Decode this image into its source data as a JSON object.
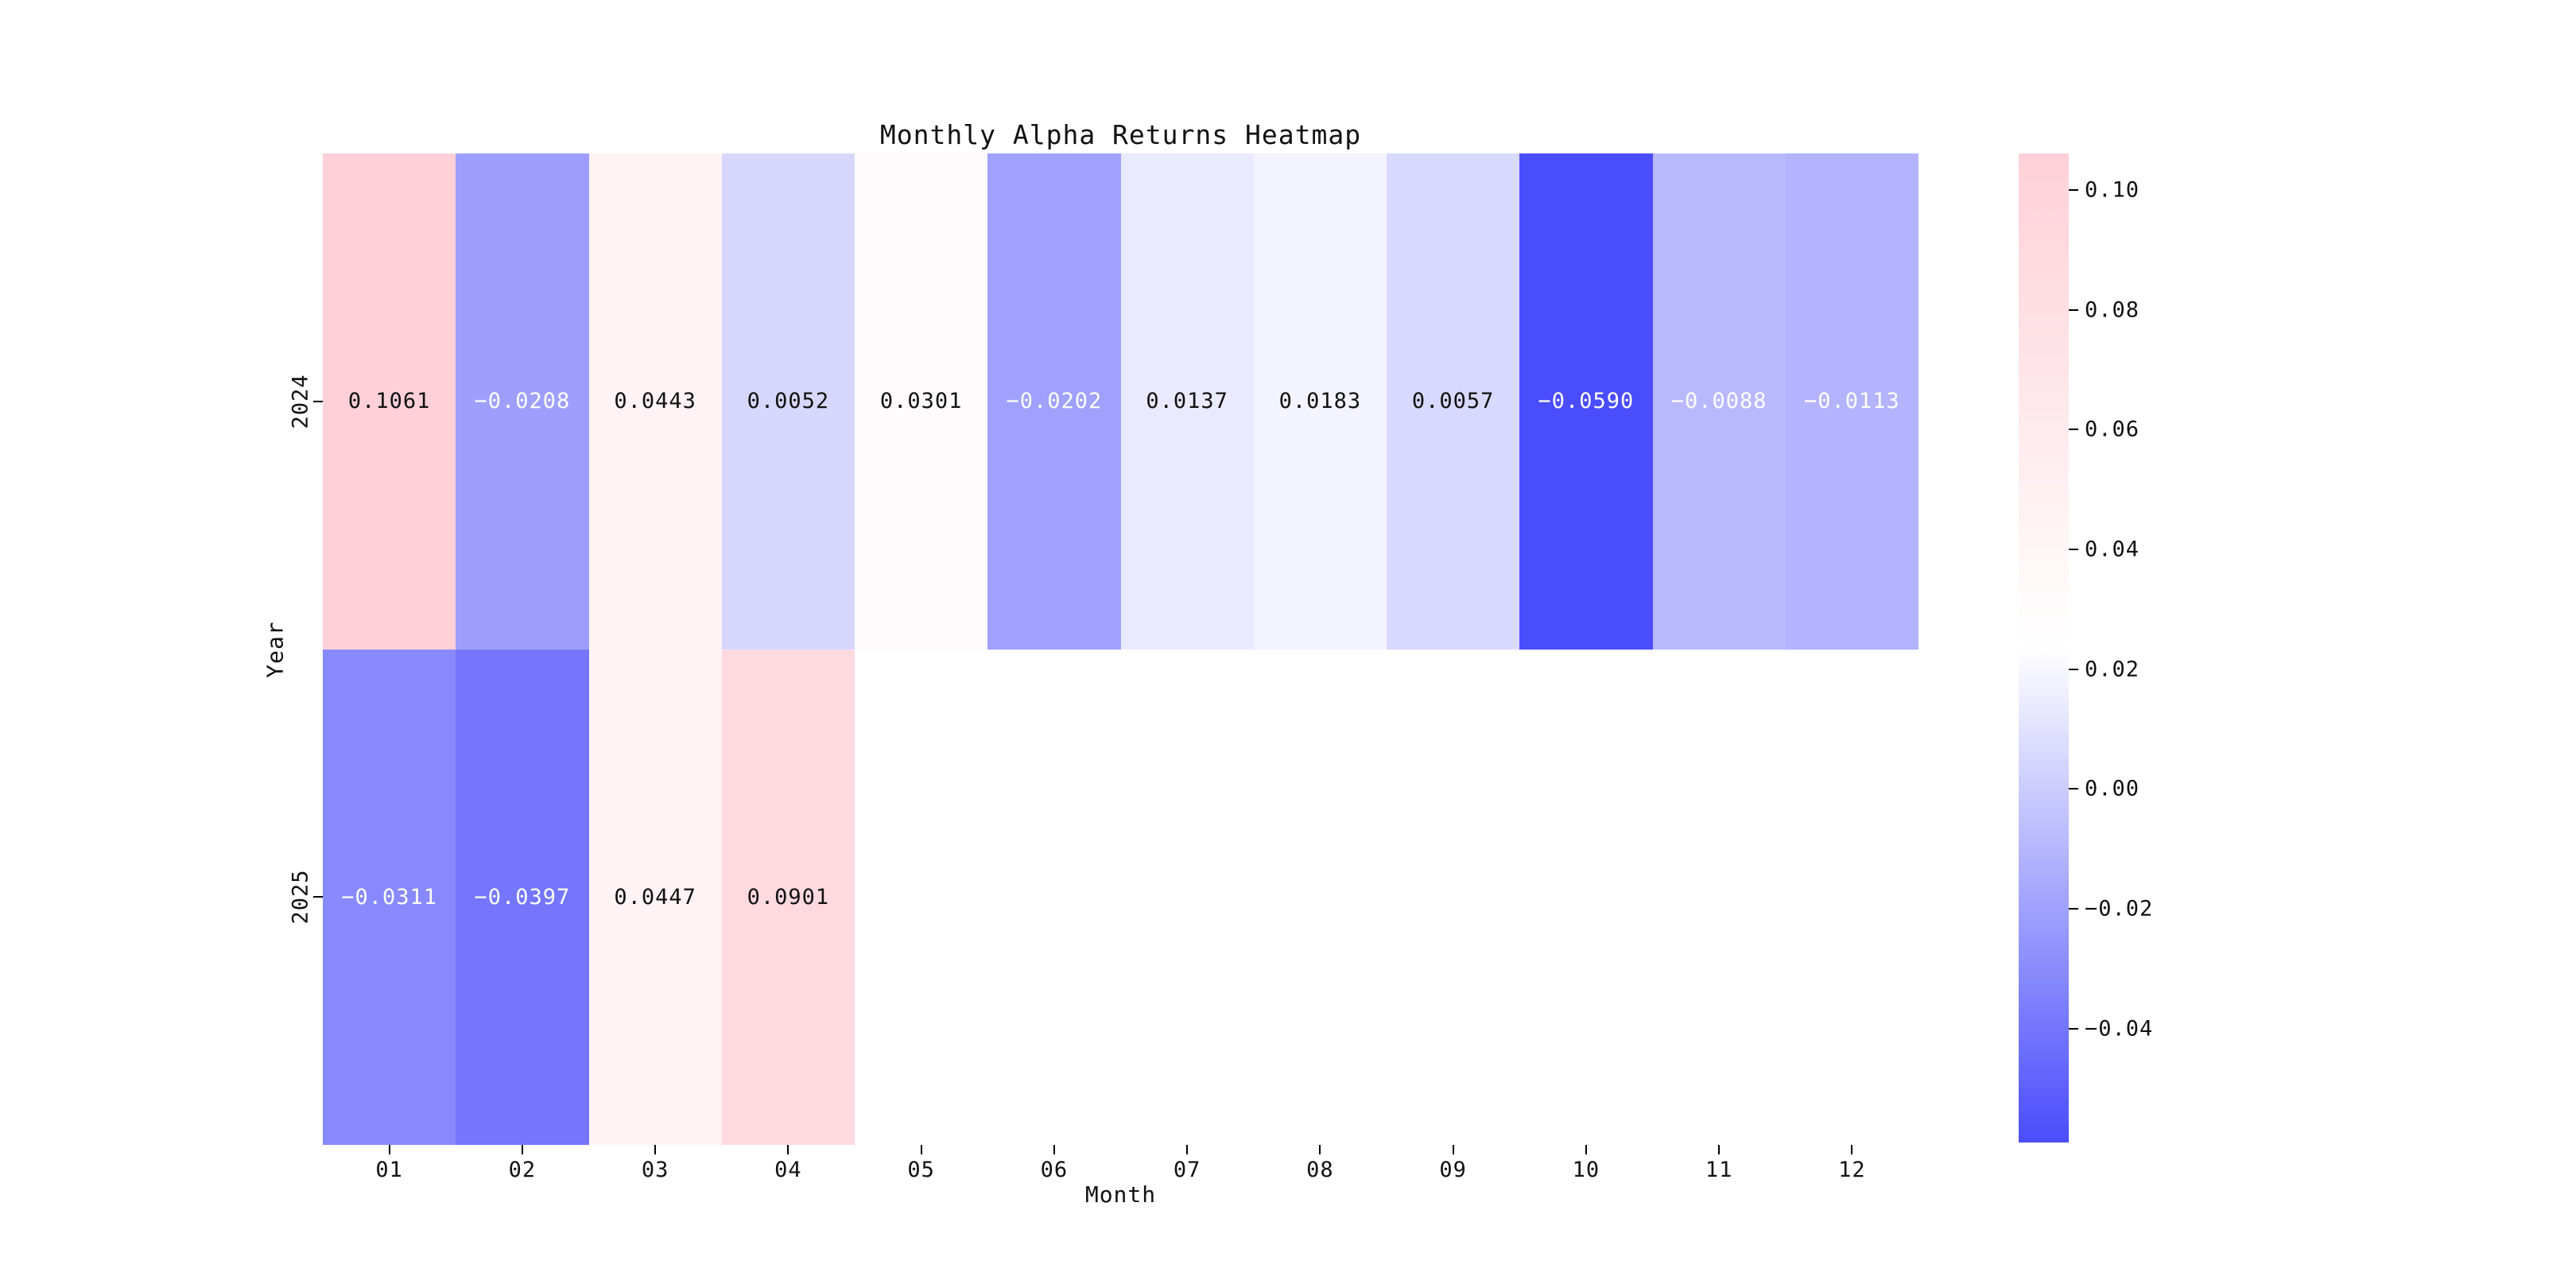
{
  "title": "Monthly Alpha Returns Heatmap",
  "chart_data": {
    "type": "heatmap",
    "title": "Monthly Alpha Returns Heatmap",
    "xlabel": "Month",
    "ylabel": "Year",
    "x_categories": [
      "01",
      "02",
      "03",
      "04",
      "05",
      "06",
      "07",
      "08",
      "09",
      "10",
      "11",
      "12"
    ],
    "y_categories": [
      "2024",
      "2025"
    ],
    "matrix": [
      [
        0.1061,
        -0.0208,
        0.0443,
        0.0052,
        0.0301,
        -0.0202,
        0.0137,
        0.0183,
        0.0057,
        -0.059,
        -0.0088,
        -0.0113
      ],
      [
        -0.0311,
        -0.0397,
        0.0447,
        0.0901,
        null,
        null,
        null,
        null,
        null,
        null,
        null,
        null
      ]
    ],
    "vmin": -0.059,
    "vmax": 0.1061,
    "annotation_decimals": 4,
    "annotation_color_positive": "#111111",
    "annotation_color_negative": "#ffffff",
    "colormap": {
      "min_color": "#4A4DFB",
      "mid_color": "#FFFFFF",
      "max_color": "#FFD0D8"
    },
    "colorbar_ticks": [
      0.1,
      0.08,
      0.06,
      0.04,
      0.02,
      0.0,
      -0.02,
      -0.04
    ],
    "colorbar_tick_decimals": 2,
    "legend_position": "right",
    "grid": false,
    "background_color": "#ffffff"
  }
}
